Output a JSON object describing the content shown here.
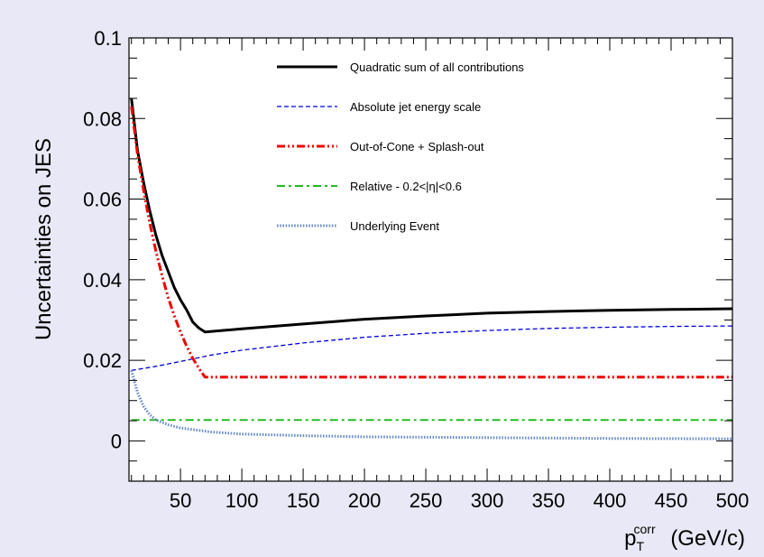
{
  "background_color": "#e8e8f6",
  "chart_data": {
    "type": "line",
    "xlabel": {
      "main": "p",
      "sub": "T",
      "sup": "corr",
      "unit": "(GeV/c)"
    },
    "ylabel": "Uncertainties on JES",
    "xlim": [
      8,
      500
    ],
    "ylim": [
      -0.01,
      0.1
    ],
    "x_ticks": [
      50,
      100,
      150,
      200,
      250,
      300,
      350,
      400,
      450,
      500
    ],
    "y_ticks": [
      0,
      0.02,
      0.04,
      0.06,
      0.08,
      0.1
    ],
    "y_tick_labels": [
      "0",
      "0.02",
      "0.04",
      "0.06",
      "0.08",
      "0.1"
    ],
    "grid": false,
    "legend_position": "top-right",
    "series": [
      {
        "name": "Quadratic sum of all contributions",
        "color": "#000000",
        "style": "solid",
        "width": 3,
        "points": [
          [
            10,
            0.085
          ],
          [
            15,
            0.072
          ],
          [
            20,
            0.064
          ],
          [
            25,
            0.057
          ],
          [
            30,
            0.051
          ],
          [
            35,
            0.046
          ],
          [
            40,
            0.042
          ],
          [
            45,
            0.038
          ],
          [
            50,
            0.035
          ],
          [
            55,
            0.0325
          ],
          [
            60,
            0.0295
          ],
          [
            65,
            0.028
          ],
          [
            70,
            0.027
          ],
          [
            100,
            0.0278
          ],
          [
            150,
            0.029
          ],
          [
            200,
            0.0302
          ],
          [
            250,
            0.031
          ],
          [
            300,
            0.0317
          ],
          [
            350,
            0.0321
          ],
          [
            400,
            0.0324
          ],
          [
            450,
            0.0326
          ],
          [
            500,
            0.0328
          ]
        ]
      },
      {
        "name": "Absolute jet energy scale",
        "color": "#0000dd",
        "style": "dashed",
        "width": 1.3,
        "points": [
          [
            10,
            0.0175
          ],
          [
            30,
            0.0185
          ],
          [
            50,
            0.0197
          ],
          [
            75,
            0.0213
          ],
          [
            100,
            0.0225
          ],
          [
            150,
            0.0243
          ],
          [
            200,
            0.0257
          ],
          [
            250,
            0.0267
          ],
          [
            300,
            0.0274
          ],
          [
            350,
            0.0279
          ],
          [
            400,
            0.0282
          ],
          [
            450,
            0.0284
          ],
          [
            500,
            0.0285
          ]
        ]
      },
      {
        "name": "Out-of-Cone + Splash-out",
        "color": "#ee0000",
        "style": "dashdotdot",
        "width": 3,
        "points": [
          [
            10,
            0.083
          ],
          [
            15,
            0.071
          ],
          [
            20,
            0.062
          ],
          [
            25,
            0.054
          ],
          [
            30,
            0.047
          ],
          [
            35,
            0.041
          ],
          [
            40,
            0.0355
          ],
          [
            45,
            0.031
          ],
          [
            50,
            0.027
          ],
          [
            55,
            0.0235
          ],
          [
            60,
            0.0205
          ],
          [
            65,
            0.018
          ],
          [
            70,
            0.0158
          ],
          [
            100,
            0.0158
          ],
          [
            200,
            0.0158
          ],
          [
            300,
            0.0158
          ],
          [
            400,
            0.0158
          ],
          [
            500,
            0.0158
          ]
        ]
      },
      {
        "name": "Relative - 0.2<|η|<0.6",
        "color": "#22bb22",
        "style": "dashdot",
        "width": 2,
        "points": [
          [
            10,
            0.0052
          ],
          [
            500,
            0.0052
          ]
        ]
      },
      {
        "name": "Underlying Event",
        "color": "#6c8ec8",
        "style": "dotted",
        "width": 3,
        "points": [
          [
            10,
            0.0175
          ],
          [
            15,
            0.012
          ],
          [
            20,
            0.0085
          ],
          [
            25,
            0.0065
          ],
          [
            30,
            0.0052
          ],
          [
            40,
            0.004
          ],
          [
            50,
            0.0032
          ],
          [
            75,
            0.0022
          ],
          [
            100,
            0.0017
          ],
          [
            150,
            0.0013
          ],
          [
            200,
            0.001
          ],
          [
            300,
            0.0008
          ],
          [
            400,
            0.0006
          ],
          [
            500,
            0.0005
          ]
        ]
      }
    ]
  }
}
